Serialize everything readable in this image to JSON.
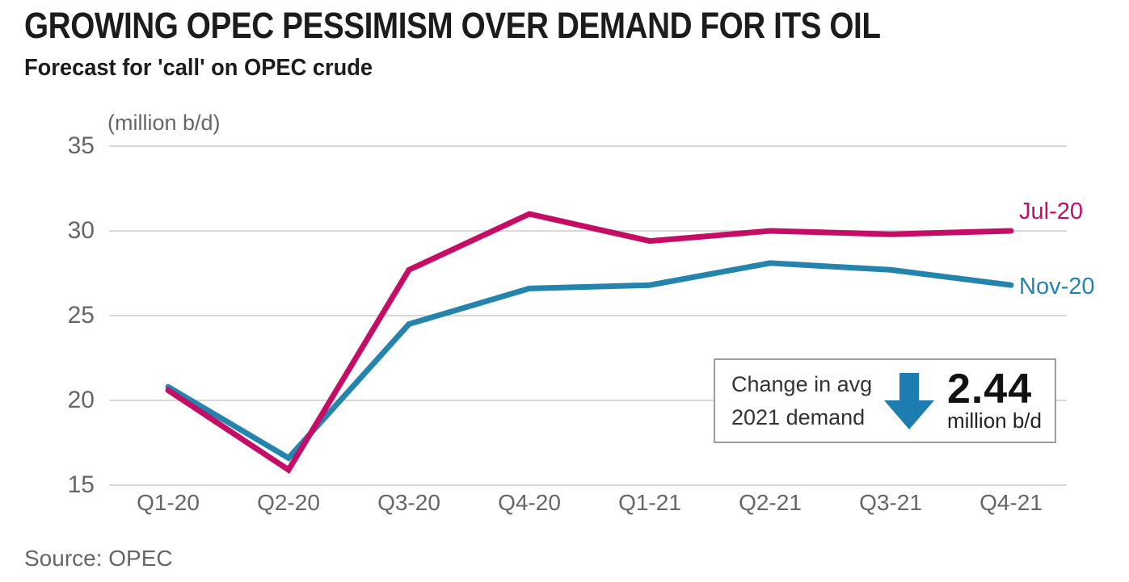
{
  "header": {
    "title": "GROWING OPEC PESSIMISM OVER DEMAND FOR ITS OIL",
    "subtitle": "Forecast for 'call' on OPEC crude"
  },
  "chart_data": {
    "type": "line",
    "title": "Forecast for 'call' on OPEC crude",
    "unit_label": "(million b/d)",
    "xlabel": "",
    "ylabel": "million b/d",
    "categories": [
      "Q1-20",
      "Q2-20",
      "Q3-20",
      "Q4-20",
      "Q1-21",
      "Q2-21",
      "Q3-21",
      "Q4-21"
    ],
    "series": [
      {
        "name": "Jul-20",
        "color": "#c60d66",
        "values": [
          20.6,
          15.9,
          27.7,
          31.0,
          29.4,
          30.0,
          29.8,
          30.0
        ]
      },
      {
        "name": "Nov-20",
        "color": "#2484ad",
        "values": [
          20.8,
          16.6,
          24.5,
          26.6,
          26.8,
          28.1,
          27.7,
          26.8
        ]
      }
    ],
    "y_ticks": [
      15,
      20,
      25,
      30,
      35
    ],
    "ylim": [
      15,
      35
    ],
    "grid": "horizontal",
    "legend_position": "right-of-line-ends"
  },
  "callout": {
    "line1": "Change in avg",
    "line2": "2021 demand",
    "arrow_icon": "down-arrow",
    "arrow_color": "#1d7db1",
    "value": "2.44",
    "unit": "million b/d"
  },
  "source": "Source: OPEC",
  "colors": {
    "accent_pink": "#c60d66",
    "accent_blue": "#2484ad",
    "grid": "#d8d8d8",
    "axis_text": "#666666",
    "title_text": "#1c1c1c",
    "callout_border": "#9d9d9d"
  }
}
